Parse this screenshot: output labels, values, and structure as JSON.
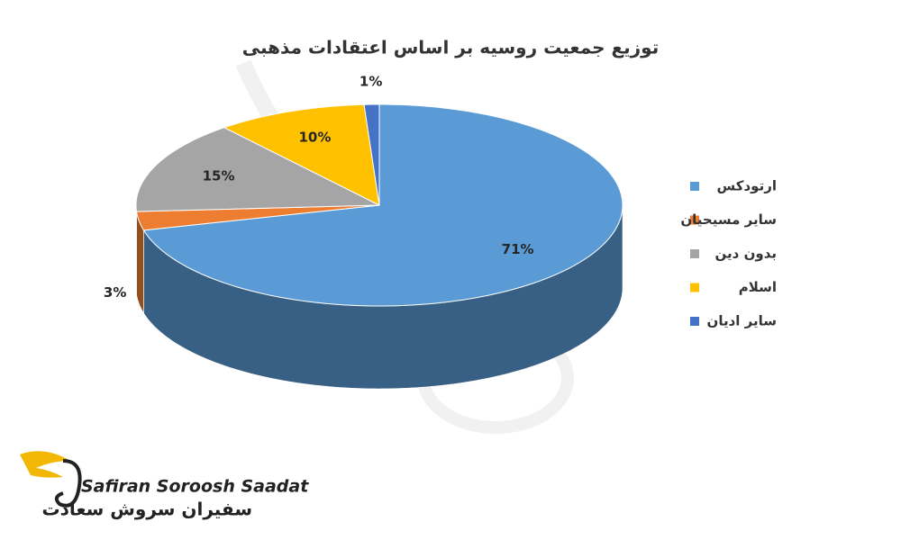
{
  "chart_data": {
    "type": "pie3d",
    "title": "توزیع جمعیت روسیه بر اساس اعتقادات مذهبی",
    "categories": [
      "ارتودکس",
      "سایر مسیحیان",
      "بدون دین",
      "اسلام",
      "سایر ادیان"
    ],
    "values": [
      71,
      3,
      15,
      10,
      1
    ],
    "value_labels": [
      "71%",
      "3%",
      "15%",
      "10%",
      "1%"
    ],
    "colors": [
      "#5b9bd5",
      "#ed7d31",
      "#a5a5a5",
      "#ffc000",
      "#4472c4"
    ],
    "legend": "right"
  },
  "logo": {
    "latin": "Safiran Soroosh Saadat",
    "persian": "سفیران سروش سعادت"
  }
}
